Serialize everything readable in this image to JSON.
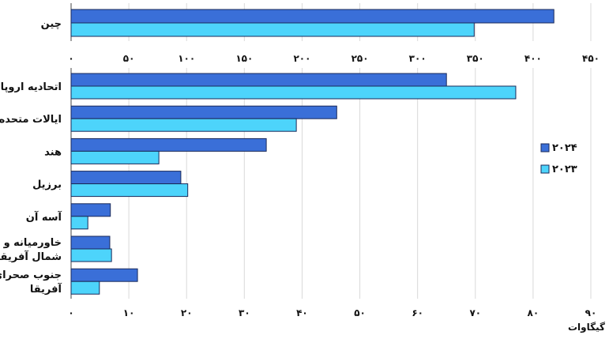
{
  "chart_data": [
    {
      "type": "bar",
      "orientation": "horizontal",
      "categories": [
        "چین"
      ],
      "series": [
        {
          "name": "۲۰۲۴",
          "values": [
            418
          ],
          "color": "#3a6fd8"
        },
        {
          "name": "۲۰۲۳",
          "values": [
            349
          ],
          "color": "#4dd4fb"
        }
      ],
      "xlim": [
        0,
        450
      ],
      "ticks": [
        "۰",
        "۵۰",
        "۱۰۰",
        "۱۵۰",
        "۲۰۰",
        "۲۵۰",
        "۳۰۰",
        "۳۵۰",
        "۴۰۰",
        "۴۵۰"
      ],
      "grid": true
    },
    {
      "type": "bar",
      "orientation": "horizontal",
      "categories": [
        "اتحادیه اروپا",
        "ایالات متحده",
        "هند",
        "برزیل",
        "آسه آن",
        "خاورمیانه و|شمال آفریقا",
        "جنوب صحرای|آفریقا"
      ],
      "series": [
        {
          "name": "۲۰۲۴",
          "values": [
            65,
            46,
            33.8,
            19,
            6.8,
            6.7,
            11.5
          ],
          "color": "#3a6fd8"
        },
        {
          "name": "۲۰۲۳",
          "values": [
            77,
            39,
            15.2,
            20.2,
            2.9,
            7,
            4.9
          ],
          "color": "#4dd4fb"
        }
      ],
      "xlim": [
        0,
        90
      ],
      "ticks": [
        "۰",
        "۱۰",
        "۲۰",
        "۳۰",
        "۴۰",
        "۵۰",
        "۶۰",
        "۷۰",
        "۸۰",
        "۹۰"
      ],
      "xlabel": "گیگاوات",
      "grid": true,
      "legend": "right"
    }
  ],
  "legend": [
    {
      "label": "۲۰۲۴",
      "color": "#3a6fd8"
    },
    {
      "label": "۲۰۲۳",
      "color": "#4dd4fb"
    }
  ]
}
